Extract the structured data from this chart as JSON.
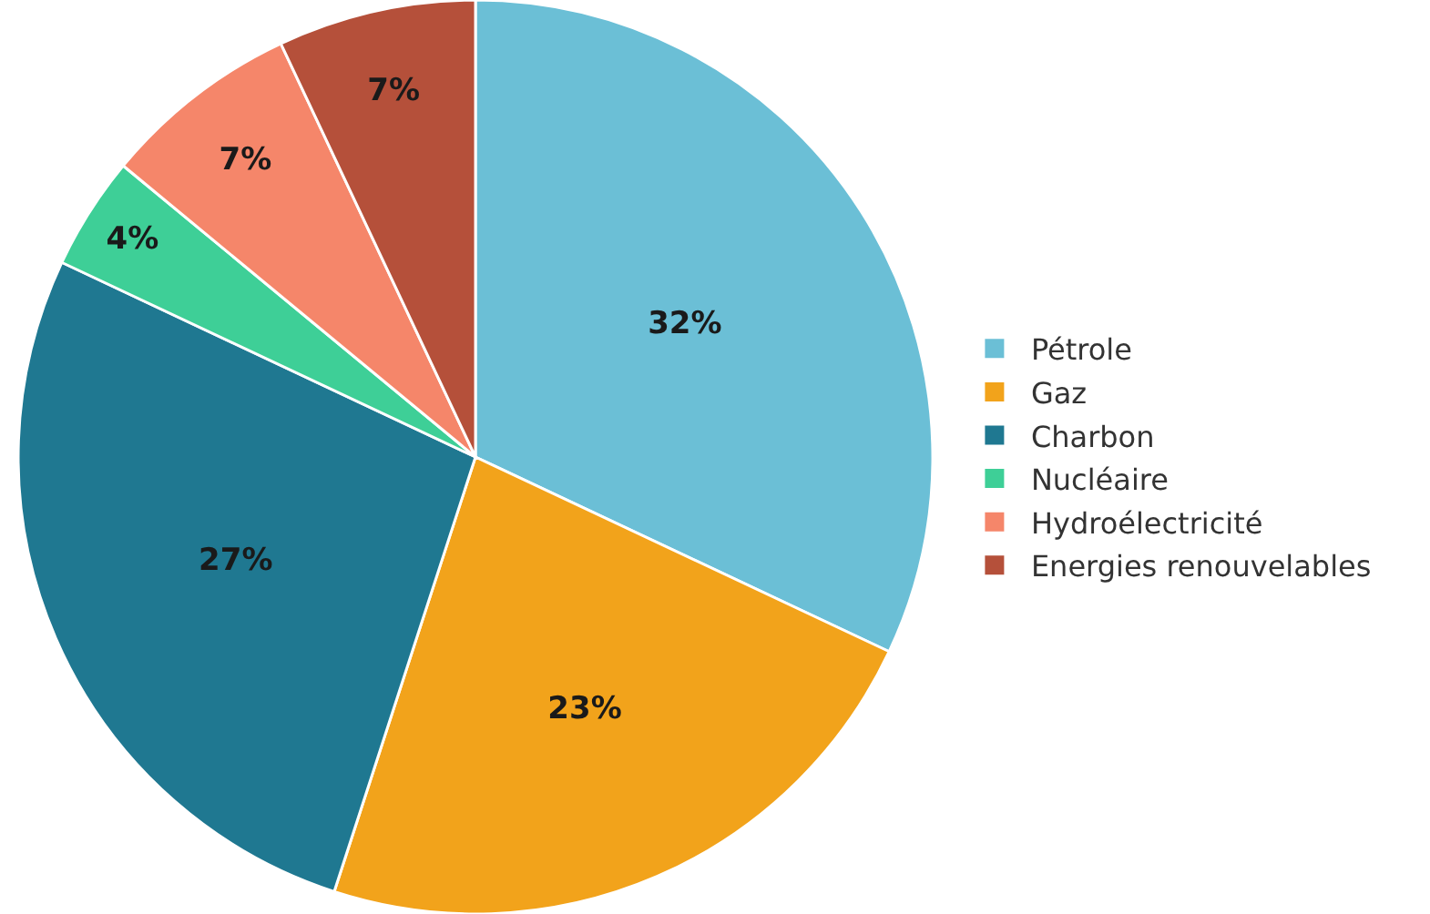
{
  "chart_data": {
    "type": "pie",
    "categories": [
      "Pétrole",
      "Gaz",
      "Charbon",
      "Nucléaire",
      "Hydroélectricité",
      "Energies renouvelables"
    ],
    "values": [
      32,
      23,
      27,
      4,
      7,
      7
    ],
    "value_labels": [
      "32%",
      "23%",
      "27%",
      "4%",
      "7%",
      "7%"
    ],
    "colors": [
      "#6bbfd6",
      "#f2a31b",
      "#1f7891",
      "#3ecf97",
      "#f5866a",
      "#b5503a"
    ],
    "legend": "right"
  }
}
